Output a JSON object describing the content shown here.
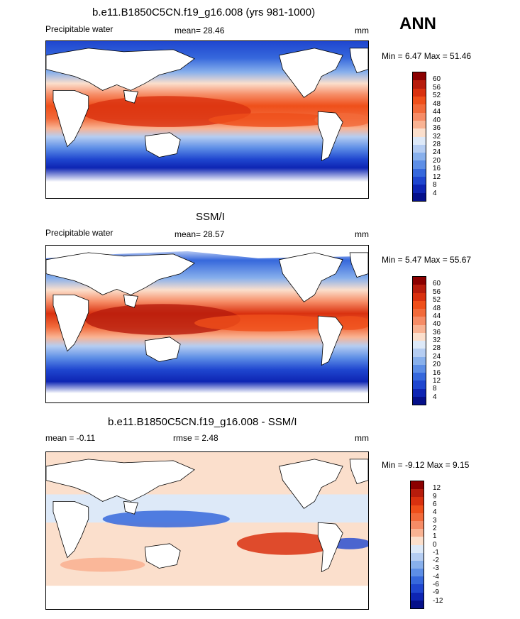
{
  "season": "ANN",
  "panels": [
    {
      "title": "b.e11.B1850C5CN.f19_g16.008 (yrs 981-1000)",
      "left_label": "Precipitable water",
      "center_label": "mean=  28.46",
      "units": "mm",
      "minmax": "Min =   6.47 Max =  51.46",
      "colorbar": {
        "levels": [
          "60",
          "56",
          "52",
          "48",
          "44",
          "40",
          "36",
          "32",
          "28",
          "24",
          "20",
          "16",
          "12",
          "8",
          "4"
        ],
        "colors": [
          "#8b0000",
          "#b71c0c",
          "#d9310f",
          "#ef4f1a",
          "#f26a3a",
          "#f68c66",
          "#f9b393",
          "#fbdfcc",
          "#dde9f8",
          "#b5cdf2",
          "#88b0ec",
          "#5d8ee6",
          "#3668dc",
          "#1f46cf",
          "#0e25b3",
          "#05108a"
        ]
      }
    },
    {
      "title": "SSM/I",
      "left_label": "Precipitable water",
      "center_label": "mean=  28.57",
      "units": "mm",
      "minmax": "Min =   5.47 Max =  55.67",
      "colorbar": {
        "levels": [
          "60",
          "56",
          "52",
          "48",
          "44",
          "40",
          "36",
          "32",
          "28",
          "24",
          "20",
          "16",
          "12",
          "8",
          "4"
        ],
        "colors": [
          "#8b0000",
          "#b71c0c",
          "#d9310f",
          "#ef4f1a",
          "#f26a3a",
          "#f68c66",
          "#f9b393",
          "#fbdfcc",
          "#dde9f8",
          "#b5cdf2",
          "#88b0ec",
          "#5d8ee6",
          "#3668dc",
          "#1f46cf",
          "#0e25b3",
          "#05108a"
        ]
      }
    },
    {
      "title": "b.e11.B1850C5CN.f19_g16.008 - SSM/I",
      "left_label": "mean =  -0.11",
      "center_label": "rmse =   2.48",
      "units": "mm",
      "minmax": "Min =  -9.12 Max =   9.15",
      "colorbar": {
        "levels": [
          "12",
          "9",
          "6",
          "4",
          "3",
          "2",
          "1",
          "0",
          "-1",
          "-2",
          "-3",
          "-4",
          "-6",
          "-9",
          "-12"
        ],
        "colors": [
          "#8b0000",
          "#b71c0c",
          "#d9310f",
          "#ef4f1a",
          "#f26a3a",
          "#f68c66",
          "#f9b393",
          "#fbdfcc",
          "#dde9f8",
          "#b5cdf2",
          "#88b0ec",
          "#5d8ee6",
          "#3668dc",
          "#1f46cf",
          "#0e25b3",
          "#05108a"
        ]
      }
    }
  ]
}
